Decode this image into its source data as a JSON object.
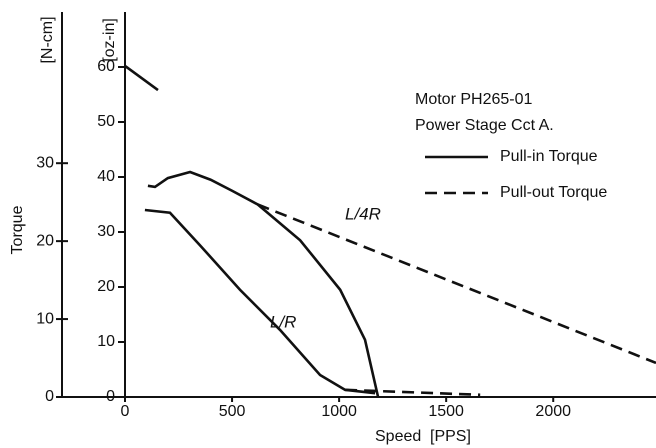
{
  "chart_data": {
    "type": "line",
    "xlabel": "Speed",
    "xunit": "[PPS]",
    "ylabel": "Torque",
    "yunit": "[oz-in]",
    "y2unit": "[N-cm]",
    "xlim": [
      0,
      2480
    ],
    "xticks": [
      0,
      500,
      1000,
      1500,
      2000
    ],
    "ylim": [
      0,
      70
    ],
    "yticks": [
      0,
      10,
      20,
      30,
      40,
      50,
      60
    ],
    "y2lim": [
      0,
      49.4
    ],
    "y2ticks": [
      0,
      10,
      20,
      30
    ],
    "notes": [
      "Motor  PH265-01",
      "Power Stage Cct A."
    ],
    "legend": [
      {
        "label": "Pull-in Torque",
        "dashed": false
      },
      {
        "label": "Pull-out Torque",
        "dashed": true
      }
    ],
    "annotations": [
      "L/4R",
      "L/R"
    ],
    "color": "#111111",
    "series": [
      {
        "dashed": false,
        "x": [
          0,
          154
        ],
        "values": [
          60.2,
          55.8
        ]
      },
      {
        "dashed": false,
        "x": [
          107,
          140,
          200,
          304,
          400,
          500,
          620,
          818,
          1005,
          1121,
          1182
        ],
        "values": [
          38.4,
          38.2,
          39.8,
          40.9,
          39.5,
          37.5,
          35,
          28.5,
          19.5,
          10.4,
          0
        ]
      },
      {
        "dashed": false,
        "x": [
          93,
          210,
          350,
          537,
          724,
          911,
          1028,
          1168
        ],
        "values": [
          34,
          33.5,
          27.6,
          19.5,
          12.2,
          4,
          1.3,
          0.7
        ]
      },
      {
        "dashed": true,
        "x": [
          620,
          2480
        ],
        "values": [
          35,
          6.2
        ]
      },
      {
        "dashed": true,
        "x": [
          1028,
          1659
        ],
        "values": [
          1.3,
          0.4
        ]
      }
    ]
  }
}
